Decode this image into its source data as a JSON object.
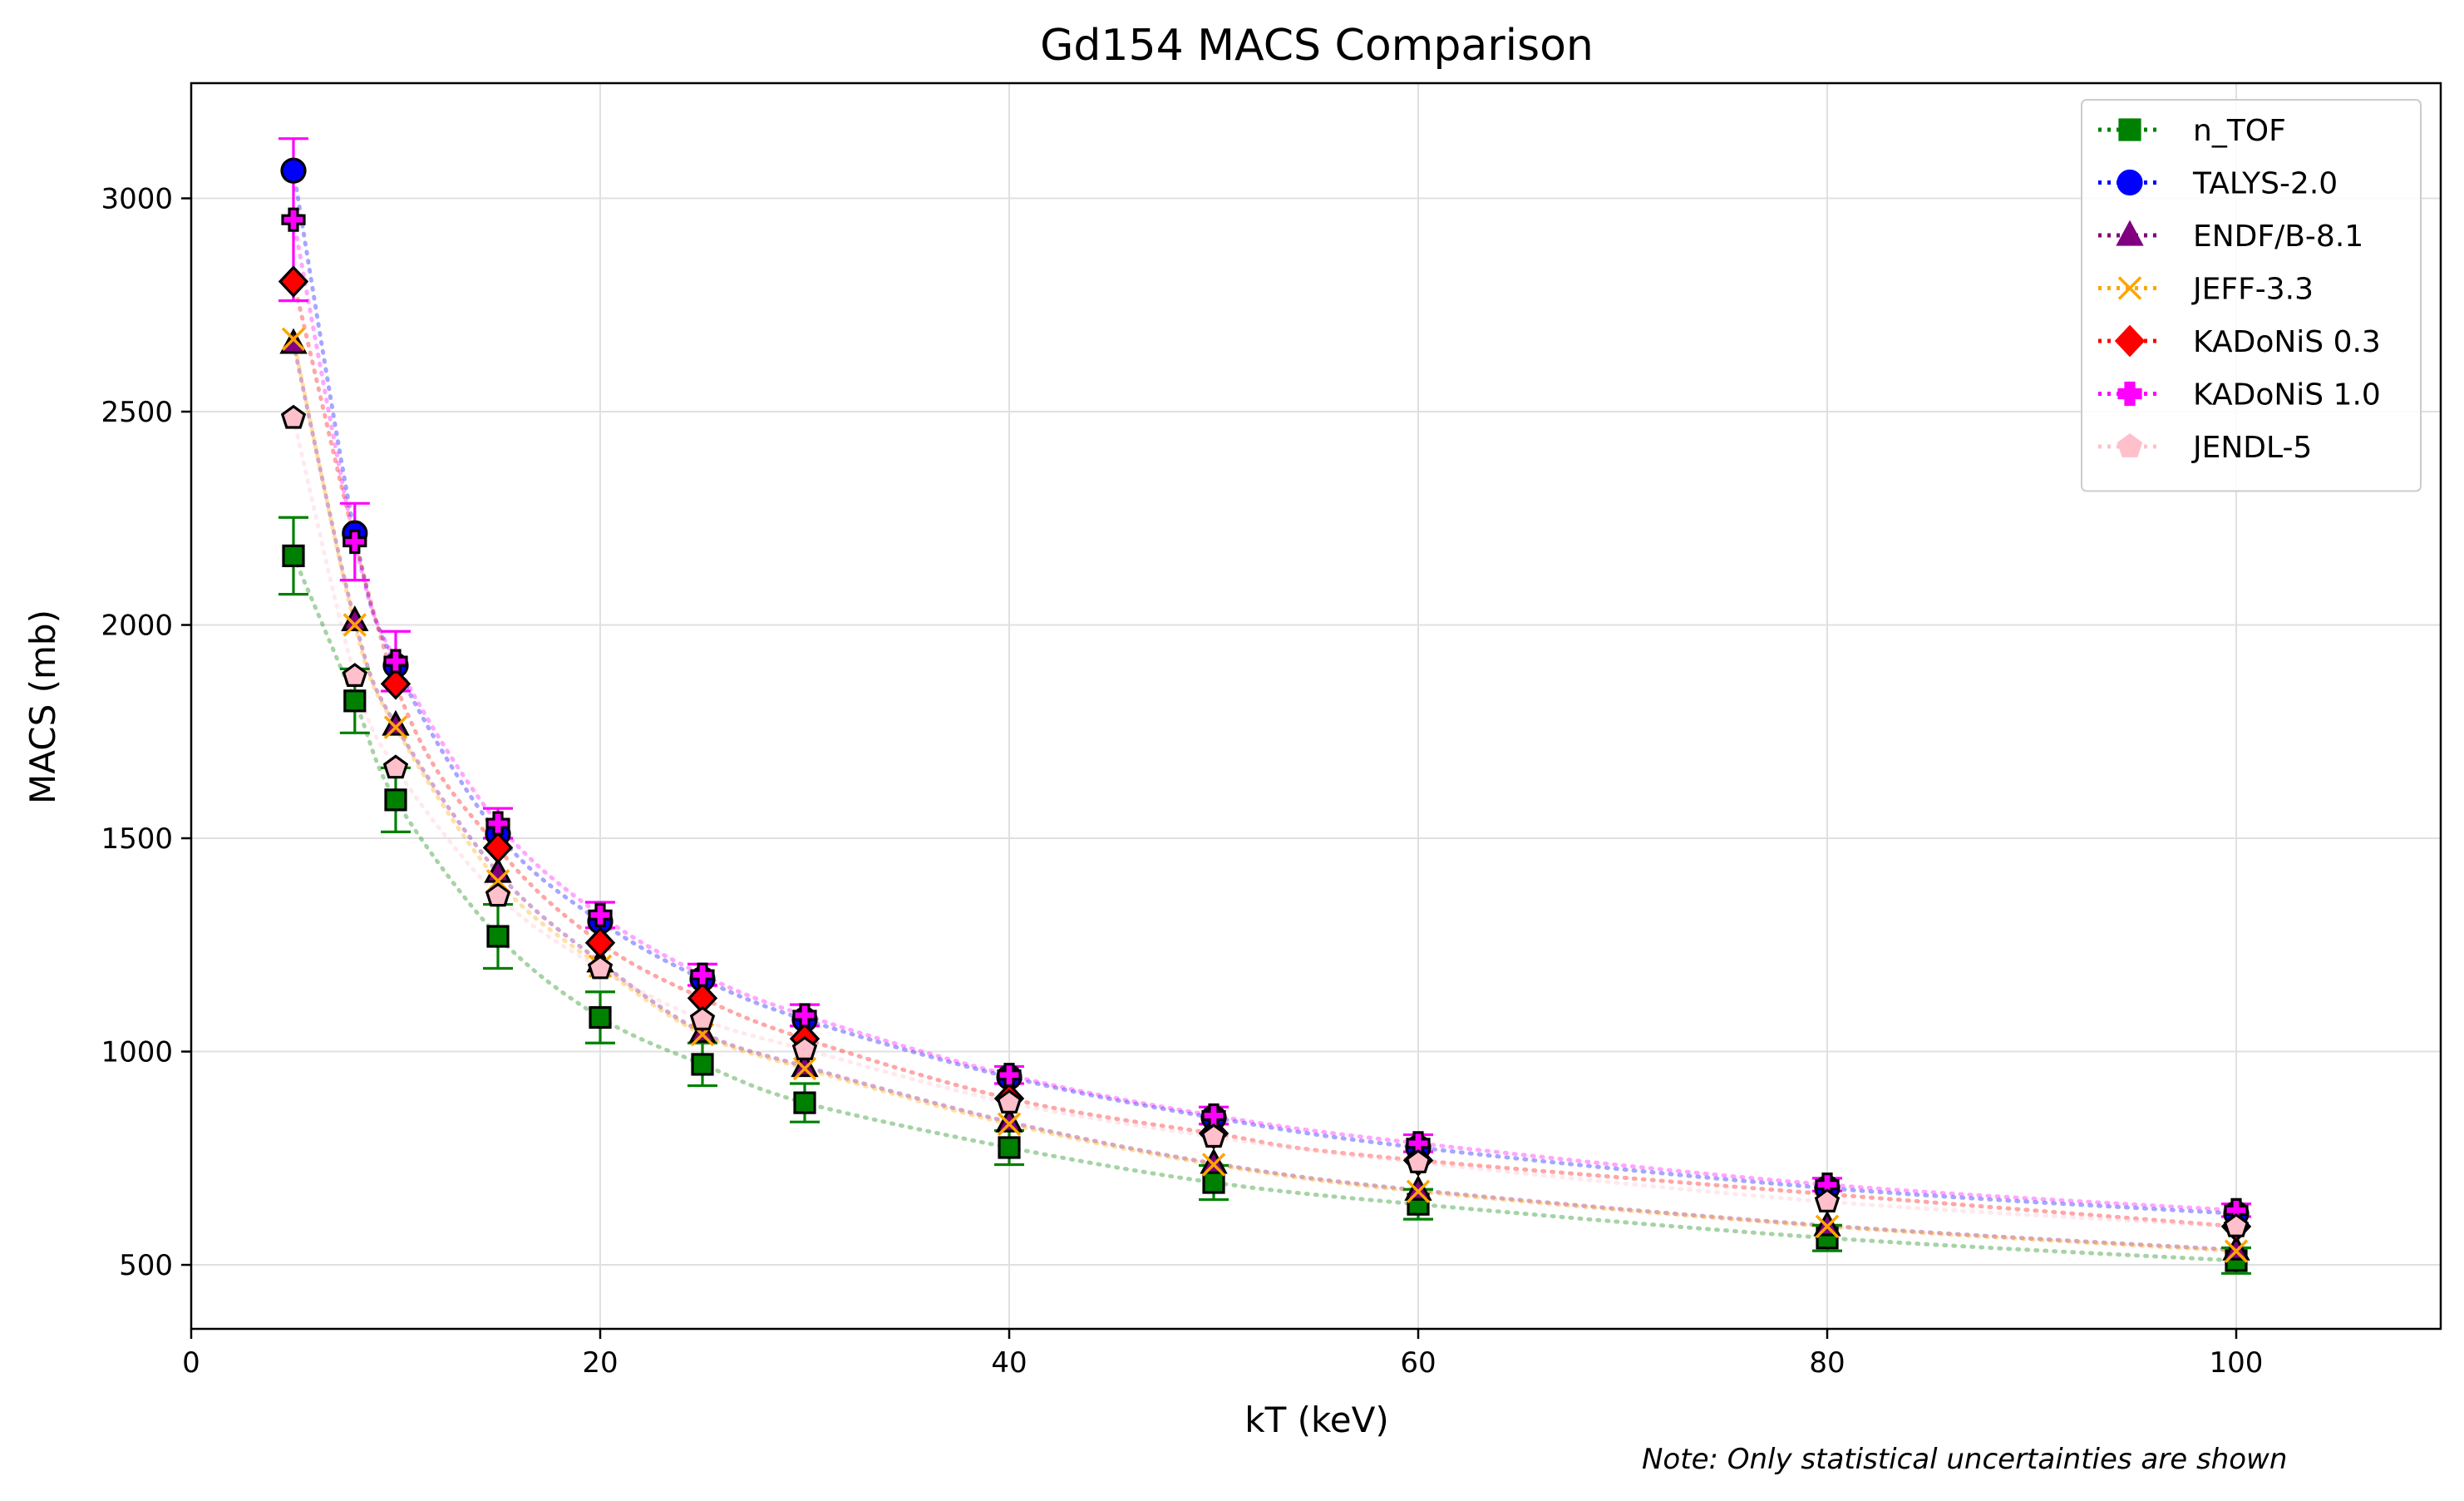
{
  "chart_data": {
    "type": "scatter",
    "title": "Gd154 MACS Comparison",
    "xlabel": "kT (keV)",
    "ylabel": "MACS (mb)",
    "xlim": [
      0,
      110
    ],
    "ylim": [
      350,
      3270
    ],
    "x_ticks": [
      0,
      20,
      40,
      60,
      80,
      100
    ],
    "y_ticks": [
      500,
      1000,
      1500,
      2000,
      2500,
      3000
    ],
    "grid": true,
    "legend_position": "top-right",
    "note": "Note: Only statistical uncertainties are shown",
    "series": [
      {
        "name": "n_TOF",
        "color": "#008000",
        "marker": "square",
        "x": [
          5,
          8,
          10,
          15,
          20,
          25,
          30,
          40,
          50,
          60,
          80,
          100
        ],
        "y": [
          2162,
          1822,
          1590,
          1270,
          1080,
          970,
          880,
          775,
          693,
          642,
          563,
          510
        ],
        "yerr": [
          90,
          75,
          75,
          75,
          60,
          50,
          45,
          40,
          40,
          35,
          30,
          30
        ]
      },
      {
        "name": "TALYS-2.0",
        "color": "#0000ff",
        "marker": "circle",
        "x": [
          5,
          8,
          10,
          15,
          20,
          25,
          30,
          40,
          50,
          60,
          80,
          100
        ],
        "y": [
          3065,
          2215,
          1905,
          1510,
          1305,
          1170,
          1075,
          940,
          845,
          775,
          680,
          620
        ]
      },
      {
        "name": "ENDF/B-8.1",
        "color": "#800080",
        "marker": "triangle",
        "x": [
          5,
          8,
          10,
          15,
          20,
          25,
          30,
          40,
          50,
          60,
          80,
          100
        ],
        "y": [
          2660,
          2010,
          1765,
          1420,
          1210,
          1045,
          965,
          835,
          738,
          675,
          592,
          535
        ]
      },
      {
        "name": "JEFF-3.3",
        "color": "#ffa500",
        "marker": "x",
        "x": [
          5,
          8,
          10,
          15,
          20,
          25,
          30,
          40,
          50,
          60,
          80,
          100
        ],
        "y": [
          2670,
          2000,
          1760,
          1400,
          1200,
          1040,
          960,
          830,
          735,
          672,
          590,
          532
        ]
      },
      {
        "name": "KADoNiS 0.3",
        "color": "#ff0000",
        "marker": "diamond",
        "x": [
          5,
          10,
          15,
          20,
          25,
          30,
          40,
          50,
          60,
          100
        ],
        "y": [
          2805,
          1862,
          1478,
          1255,
          1125,
          1030,
          890,
          808,
          745,
          590
        ]
      },
      {
        "name": "KADoNiS 1.0",
        "color": "#ff00ff",
        "marker": "plus",
        "x": [
          5,
          8,
          10,
          15,
          20,
          25,
          30,
          40,
          50,
          60,
          80,
          100
        ],
        "y": [
          2950,
          2195,
          1915,
          1535,
          1320,
          1180,
          1085,
          945,
          850,
          785,
          688,
          628
        ],
        "yerr": [
          190,
          90,
          70,
          35,
          30,
          25,
          25,
          20,
          20,
          20,
          15,
          15
        ]
      },
      {
        "name": "JENDL-5",
        "color": "#ffc0cb",
        "marker": "pentagon",
        "x": [
          5,
          8,
          10,
          15,
          20,
          25,
          30,
          40,
          50,
          60,
          80,
          100
        ],
        "y": [
          2485,
          1880,
          1665,
          1365,
          1195,
          1075,
          1005,
          880,
          800,
          740,
          648,
          590
        ]
      }
    ]
  }
}
